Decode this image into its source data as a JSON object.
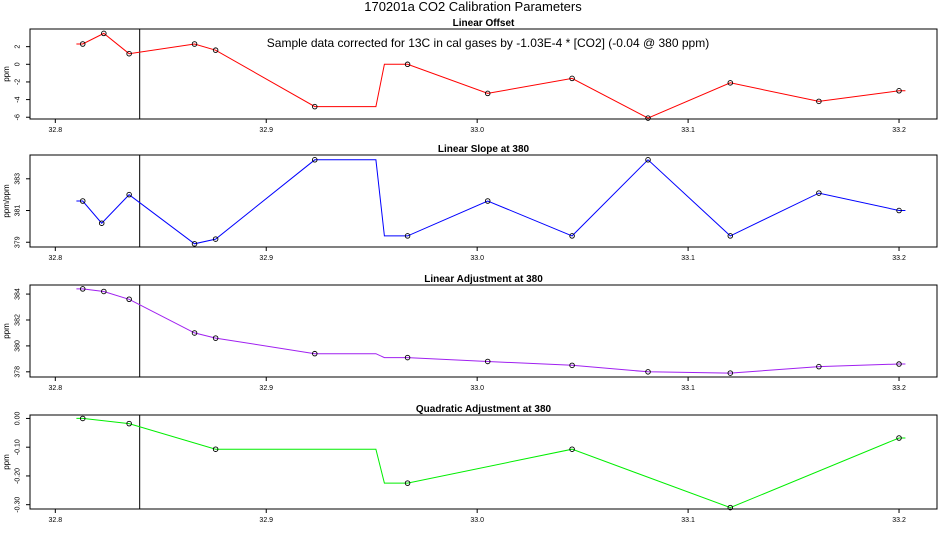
{
  "figure": {
    "title": "170201a   CO2 Calibration Parameters",
    "annotation": "Sample data corrected for 13C in cal gases by -1.03E-4 * [CO2] (-0.04 @ 380 ppm)"
  },
  "chart_data": [
    {
      "type": "line",
      "title": "Linear Offset",
      "ylabel": "ppm",
      "color": "#ff0000",
      "xlim": [
        32.788,
        33.218
      ],
      "ylim": [
        -6.2,
        4.0
      ],
      "x_ticks": [
        "32.8",
        "32.9",
        "33.0",
        "33.1",
        "33.2"
      ],
      "y_ticks": [
        "2",
        "0",
        "-2",
        "-4",
        "-6"
      ],
      "y_tick_values": [
        2,
        0,
        -2,
        -4,
        -6
      ],
      "vline_x": 32.84,
      "line": [
        [
          32.81,
          2.3
        ],
        [
          32.813,
          2.3
        ],
        [
          32.823,
          3.5
        ],
        [
          32.835,
          1.2
        ],
        [
          32.866,
          2.3
        ],
        [
          32.876,
          1.6
        ],
        [
          32.923,
          -4.8
        ],
        [
          32.952,
          -4.8
        ],
        [
          32.956,
          0
        ],
        [
          32.967,
          0
        ],
        [
          33.005,
          -3.3
        ],
        [
          33.045,
          -1.6
        ],
        [
          33.081,
          -6.1
        ],
        [
          33.12,
          -2.1
        ],
        [
          33.162,
          -4.2
        ],
        [
          33.2,
          -3.0
        ],
        [
          33.203,
          -3.0
        ]
      ],
      "points": [
        [
          32.813,
          2.3
        ],
        [
          32.823,
          3.5
        ],
        [
          32.835,
          1.2
        ],
        [
          32.866,
          2.3
        ],
        [
          32.876,
          1.6
        ],
        [
          32.923,
          -4.8
        ],
        [
          32.967,
          0
        ],
        [
          33.005,
          -3.3
        ],
        [
          33.045,
          -1.6
        ],
        [
          33.081,
          -6.1
        ],
        [
          33.12,
          -2.1
        ],
        [
          33.162,
          -4.2
        ],
        [
          33.2,
          -3.0
        ]
      ]
    },
    {
      "type": "line",
      "title": "Linear Slope at 380",
      "ylabel": "ppm/ppm",
      "color": "#0000ff",
      "xlim": [
        32.788,
        33.218
      ],
      "ylim": [
        378.7,
        384.5
      ],
      "x_ticks": [
        "32.8",
        "32.9",
        "33.0",
        "33.1",
        "33.2"
      ],
      "y_ticks": [
        "383",
        "381",
        "379"
      ],
      "y_tick_values": [
        383,
        381,
        379
      ],
      "vline_x": 32.84,
      "line": [
        [
          32.81,
          381.6
        ],
        [
          32.813,
          381.6
        ],
        [
          32.822,
          380.2
        ],
        [
          32.835,
          382.0
        ],
        [
          32.866,
          378.9
        ],
        [
          32.876,
          379.2
        ],
        [
          32.923,
          384.2
        ],
        [
          32.952,
          384.2
        ],
        [
          32.956,
          379.4
        ],
        [
          32.967,
          379.4
        ],
        [
          33.005,
          381.6
        ],
        [
          33.045,
          379.4
        ],
        [
          33.081,
          384.2
        ],
        [
          33.12,
          379.4
        ],
        [
          33.162,
          382.1
        ],
        [
          33.2,
          381.0
        ],
        [
          33.203,
          381.0
        ]
      ],
      "points": [
        [
          32.813,
          381.6
        ],
        [
          32.822,
          380.2
        ],
        [
          32.835,
          382.0
        ],
        [
          32.866,
          378.9
        ],
        [
          32.876,
          379.2
        ],
        [
          32.923,
          384.2
        ],
        [
          32.967,
          379.4
        ],
        [
          33.005,
          381.6
        ],
        [
          33.045,
          379.4
        ],
        [
          33.081,
          384.2
        ],
        [
          33.12,
          379.4
        ],
        [
          33.162,
          382.1
        ],
        [
          33.2,
          381.0
        ]
      ]
    },
    {
      "type": "line",
      "title": "Linear Adjustment at 380",
      "ylabel": "ppm",
      "color": "#a020f0",
      "xlim": [
        32.788,
        33.218
      ],
      "ylim": [
        377.6,
        384.7
      ],
      "x_ticks": [
        "32.8",
        "32.9",
        "33.0",
        "33.1",
        "33.2"
      ],
      "y_ticks": [
        "384",
        "382",
        "380",
        "378"
      ],
      "y_tick_values": [
        384,
        382,
        380,
        378
      ],
      "vline_x": 32.84,
      "line": [
        [
          32.81,
          384.4
        ],
        [
          32.813,
          384.4
        ],
        [
          32.823,
          384.2
        ],
        [
          32.835,
          383.6
        ],
        [
          32.866,
          381.0
        ],
        [
          32.876,
          380.6
        ],
        [
          32.923,
          379.4
        ],
        [
          32.952,
          379.4
        ],
        [
          32.956,
          379.1
        ],
        [
          32.967,
          379.1
        ],
        [
          33.005,
          378.8
        ],
        [
          33.045,
          378.5
        ],
        [
          33.081,
          378.0
        ],
        [
          33.12,
          377.9
        ],
        [
          33.162,
          378.4
        ],
        [
          33.2,
          378.6
        ],
        [
          33.203,
          378.6
        ]
      ],
      "points": [
        [
          32.813,
          384.4
        ],
        [
          32.823,
          384.2
        ],
        [
          32.835,
          383.6
        ],
        [
          32.866,
          381.0
        ],
        [
          32.876,
          380.6
        ],
        [
          32.923,
          379.4
        ],
        [
          32.967,
          379.1
        ],
        [
          33.005,
          378.8
        ],
        [
          33.045,
          378.5
        ],
        [
          33.081,
          378.0
        ],
        [
          33.12,
          377.9
        ],
        [
          33.162,
          378.4
        ],
        [
          33.2,
          378.6
        ]
      ]
    },
    {
      "type": "line",
      "title": "Quadratic Adjustment at 380",
      "ylabel": "ppm",
      "color": "#00ee00",
      "xlim": [
        32.788,
        33.218
      ],
      "ylim": [
        -0.315,
        0.012
      ],
      "x_ticks": [
        "32.8",
        "32.9",
        "33.0",
        "33.1",
        "33.2"
      ],
      "y_ticks": [
        "0.00",
        "-0.10",
        "-0.20",
        "-0.30"
      ],
      "y_tick_values": [
        0.0,
        -0.1,
        -0.2,
        -0.3
      ],
      "vline_x": 32.84,
      "line": [
        [
          32.81,
          0.0
        ],
        [
          32.813,
          0.0
        ],
        [
          32.835,
          -0.018
        ],
        [
          32.876,
          -0.107
        ],
        [
          32.952,
          -0.107
        ],
        [
          32.956,
          -0.225
        ],
        [
          32.967,
          -0.225
        ],
        [
          33.045,
          -0.107
        ],
        [
          33.12,
          -0.31
        ],
        [
          33.2,
          -0.068
        ],
        [
          33.203,
          -0.068
        ]
      ],
      "points": [
        [
          32.813,
          0.0
        ],
        [
          32.835,
          -0.018
        ],
        [
          32.876,
          -0.107
        ],
        [
          32.967,
          -0.225
        ],
        [
          33.045,
          -0.107
        ],
        [
          33.12,
          -0.31
        ],
        [
          33.2,
          -0.068
        ]
      ]
    }
  ]
}
